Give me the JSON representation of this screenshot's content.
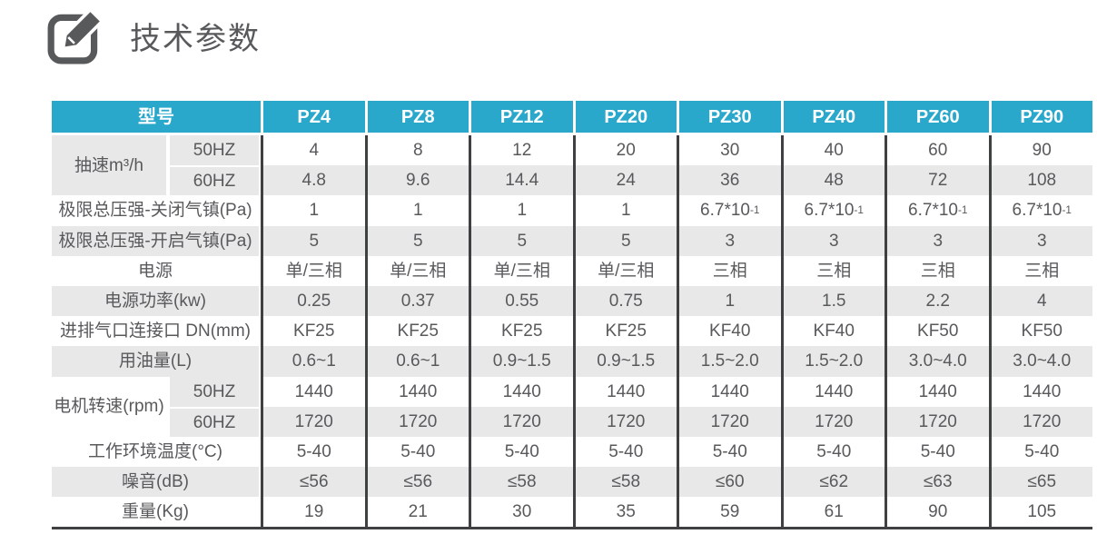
{
  "page": {
    "title": "技术参数",
    "icon": "edit-pencil-icon"
  },
  "colors": {
    "header_bg": "#29a8cc",
    "header_text": "#ffffff",
    "row_bg": "#ffffff",
    "row_alt_bg": "#e8e8e8",
    "border_dark": "#3f4041",
    "text": "#58595b",
    "icon": "#58595b"
  },
  "table": {
    "corner_label": "型号",
    "columns": [
      "PZ4",
      "PZ8",
      "PZ12",
      "PZ20",
      "PZ30",
      "PZ40",
      "PZ60",
      "PZ90"
    ],
    "rows": [
      {
        "label": "抽速m³/h",
        "sublabel": "50HZ",
        "group_start": true,
        "group_rows": 2,
        "label_shade": "gray",
        "values": [
          "4",
          "8",
          "12",
          "20",
          "30",
          "40",
          "60",
          "90"
        ]
      },
      {
        "sublabel": "60HZ",
        "values": [
          "4.8",
          "9.6",
          "14.4",
          "24",
          "36",
          "48",
          "72",
          "108"
        ]
      },
      {
        "label": "极限总压强-关闭气镇(Pa)",
        "values": [
          "1",
          "1",
          "1",
          "1",
          "6.7*10⁻¹",
          "6.7*10⁻¹",
          "6.7*10⁻¹",
          "6.7*10⁻¹"
        ]
      },
      {
        "label": "极限总压强-开启气镇(Pa)",
        "values": [
          "5",
          "5",
          "5",
          "5",
          "3",
          "3",
          "3",
          "3"
        ]
      },
      {
        "label": "电源",
        "values": [
          "单/三相",
          "单/三相",
          "单/三相",
          "单/三相",
          "三相",
          "三相",
          "三相",
          "三相"
        ]
      },
      {
        "label": "电源功率(kw)",
        "values": [
          "0.25",
          "0.37",
          "0.55",
          "0.75",
          "1",
          "1.5",
          "2.2",
          "4"
        ]
      },
      {
        "label": "进排气口连接口 DN(mm)",
        "values": [
          "KF25",
          "KF25",
          "KF25",
          "KF25",
          "KF40",
          "KF40",
          "KF50",
          "KF50"
        ]
      },
      {
        "label": "用油量(L)",
        "values": [
          "0.6~1",
          "0.6~1",
          "0.9~1.5",
          "0.9~1.5",
          "1.5~2.0",
          "1.5~2.0",
          "3.0~4.0",
          "3.0~4.0"
        ]
      },
      {
        "label": "电机转速(rpm)",
        "sublabel": "50HZ",
        "group_start": true,
        "group_rows": 2,
        "label_shade": "white",
        "values": [
          "1440",
          "1440",
          "1440",
          "1440",
          "1440",
          "1440",
          "1440",
          "1440"
        ]
      },
      {
        "sublabel": "60HZ",
        "values": [
          "1720",
          "1720",
          "1720",
          "1720",
          "1720",
          "1720",
          "1720",
          "1720"
        ]
      },
      {
        "label": "工作环境温度(°C)",
        "values": [
          "5-40",
          "5-40",
          "5-40",
          "5-40",
          "5-40",
          "5-40",
          "5-40",
          "5-40"
        ]
      },
      {
        "label": "噪音(dB)",
        "values": [
          "≤56",
          "≤56",
          "≤58",
          "≤58",
          "≤60",
          "≤62",
          "≤63",
          "≤65"
        ]
      },
      {
        "label": "重量(Kg)",
        "values": [
          "19",
          "21",
          "30",
          "35",
          "59",
          "61",
          "90",
          "105"
        ]
      }
    ]
  }
}
